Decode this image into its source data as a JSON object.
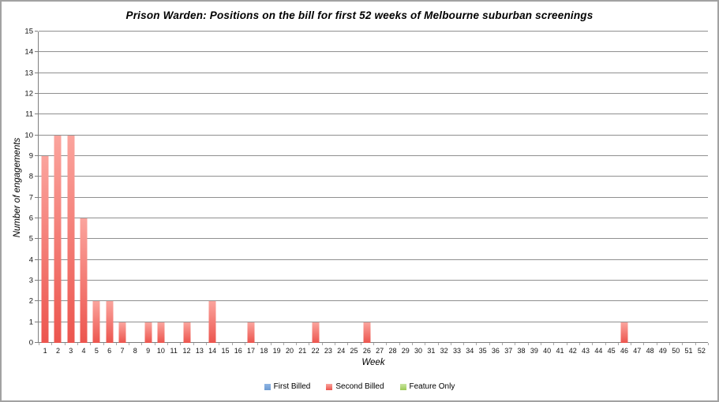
{
  "chart_data": {
    "type": "bar",
    "title": "Prison Warden: Positions on the bill for first 52 weeks of Melbourne suburban screenings",
    "xlabel": "Week",
    "ylabel": "Number of engagements",
    "ylim": [
      0,
      15
    ],
    "grid": true,
    "legend_position": "bottom",
    "yticks": [
      0,
      1,
      2,
      3,
      4,
      5,
      6,
      7,
      8,
      9,
      10,
      11,
      12,
      13,
      14,
      15
    ],
    "categories": [
      1,
      2,
      3,
      4,
      5,
      6,
      7,
      8,
      9,
      10,
      11,
      12,
      13,
      14,
      15,
      16,
      17,
      18,
      19,
      20,
      21,
      22,
      23,
      24,
      25,
      26,
      27,
      28,
      29,
      30,
      31,
      32,
      33,
      34,
      35,
      36,
      37,
      38,
      39,
      40,
      41,
      42,
      43,
      44,
      45,
      46,
      47,
      48,
      49,
      50,
      51,
      52
    ],
    "series": [
      {
        "name": "First Billed",
        "color_top": "#8fb5e3",
        "color_bottom": "#6d9bd3",
        "values": [
          0,
          0,
          0,
          0,
          0,
          0,
          0,
          0,
          0,
          0,
          0,
          0,
          0,
          0,
          0,
          0,
          0,
          0,
          0,
          0,
          0,
          0,
          0,
          0,
          0,
          0,
          0,
          0,
          0,
          0,
          0,
          0,
          0,
          0,
          0,
          0,
          0,
          0,
          0,
          0,
          0,
          0,
          0,
          0,
          0,
          0,
          0,
          0,
          0,
          0,
          0,
          0
        ]
      },
      {
        "name": "Second Billed",
        "color_top": "#fba49d",
        "color_bottom": "#ec554e",
        "values": [
          9,
          10,
          10,
          6,
          2,
          2,
          1,
          0,
          1,
          1,
          0,
          1,
          0,
          2,
          0,
          0,
          1,
          0,
          0,
          0,
          0,
          1,
          0,
          0,
          0,
          1,
          0,
          0,
          0,
          0,
          0,
          0,
          0,
          0,
          0,
          0,
          0,
          0,
          0,
          0,
          0,
          0,
          0,
          0,
          0,
          1,
          0,
          0,
          0,
          0,
          0,
          0
        ]
      },
      {
        "name": "Feature Only",
        "color_top": "#c9e5a0",
        "color_bottom": "#9cca55",
        "values": [
          0,
          0,
          0,
          0,
          0,
          0,
          0,
          0,
          0,
          0,
          0,
          0,
          0,
          0,
          0,
          0,
          0,
          0,
          0,
          0,
          0,
          0,
          0,
          0,
          0,
          0,
          0,
          0,
          0,
          0,
          0,
          0,
          0,
          0,
          0,
          0,
          0,
          0,
          0,
          0,
          0,
          0,
          0,
          0,
          0,
          0,
          0,
          0,
          0,
          0,
          0,
          0
        ]
      }
    ],
    "colors": {
      "gridline": "#8f8f8f",
      "axis": "#7f7f7f",
      "tick": "#a8a8a8",
      "text": "#111111"
    }
  }
}
